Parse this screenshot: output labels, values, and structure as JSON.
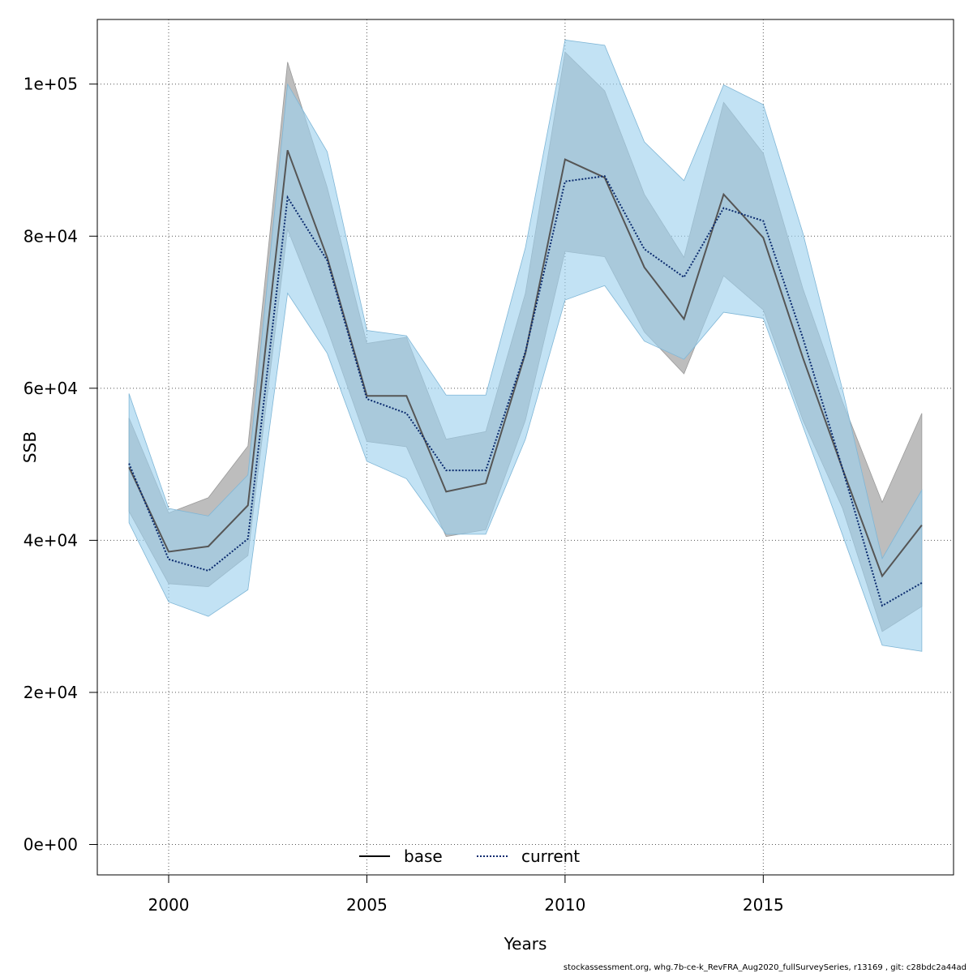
{
  "chart_data": {
    "type": "line",
    "xlabel": "Years",
    "ylabel": "SSB",
    "xlim": [
      1998.2,
      2019.8
    ],
    "ylim": [
      -4000,
      108500
    ],
    "x_ticks": [
      2000,
      2005,
      2010,
      2015
    ],
    "y_ticks": [
      0,
      20000,
      40000,
      60000,
      80000,
      100000
    ],
    "y_tick_labels": [
      "0e+00",
      "2e+04",
      "4e+04",
      "6e+04",
      "8e+04",
      "1e+05"
    ],
    "grid": true,
    "legend_position": "bottom",
    "x": [
      1999,
      2000,
      2001,
      2002,
      2003,
      2004,
      2005,
      2006,
      2007,
      2008,
      2009,
      2010,
      2011,
      2012,
      2013,
      2014,
      2015,
      2016,
      2017,
      2018,
      2019
    ],
    "series": [
      {
        "name": "base",
        "line_style": "solid",
        "line_color": "#555555",
        "band_color": "#bdbdbd",
        "values": [
          49600,
          38500,
          39200,
          44600,
          91300,
          77200,
          59000,
          59000,
          46400,
          47500,
          64600,
          90100,
          87700,
          75900,
          69100,
          85500,
          79800,
          64000,
          49400,
          35300,
          42000
        ],
        "lower": [
          43800,
          34300,
          33900,
          38000,
          80900,
          67800,
          53000,
          52300,
          40500,
          41400,
          55800,
          78000,
          77300,
          67400,
          61900,
          74800,
          70300,
          55800,
          44200,
          28000,
          31300
        ],
        "upper": [
          56100,
          43600,
          45600,
          52400,
          102900,
          86400,
          65900,
          66700,
          53300,
          54300,
          72500,
          104200,
          99100,
          85500,
          77200,
          97600,
          90900,
          73100,
          58200,
          45000,
          56700
        ]
      },
      {
        "name": "current",
        "line_style": "dotted",
        "line_color": "#0a2a6e",
        "band_color": "#9dd1ee",
        "values": [
          50100,
          37500,
          36000,
          40200,
          85100,
          76800,
          58600,
          56700,
          49200,
          49200,
          64800,
          87200,
          87900,
          78300,
          74600,
          83700,
          82000,
          66600,
          49400,
          31400,
          34400
        ],
        "lower": [
          42300,
          31900,
          30000,
          33500,
          72500,
          64600,
          50400,
          48100,
          40800,
          40800,
          53300,
          71600,
          73500,
          66200,
          63800,
          70000,
          69200,
          55000,
          40700,
          26200,
          25400
        ],
        "upper": [
          59300,
          44200,
          43200,
          48600,
          100000,
          91100,
          67600,
          66900,
          59100,
          59100,
          78500,
          105800,
          105100,
          92400,
          87300,
          99900,
          97300,
          80400,
          59800,
          37600,
          46600
        ]
      }
    ]
  },
  "footer": "stockassessment.org, whg.7b-ce-k_RevFRA_Aug2020_fullSurveySeries, r13169 , git: c28bdc2a44ad"
}
